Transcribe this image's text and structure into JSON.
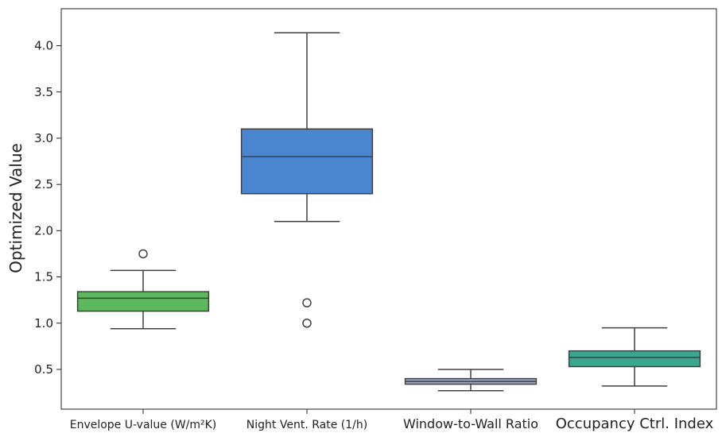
{
  "chart_data": {
    "type": "box",
    "title": "",
    "xlabel": "",
    "ylabel": "Optimized Value",
    "ylim": [
      0.07,
      4.4
    ],
    "yticks": [
      0.5,
      1.0,
      1.5,
      2.0,
      2.5,
      3.0,
      3.5,
      4.0
    ],
    "ytick_labels": [
      "0.5",
      "1.0",
      "1.5",
      "2.0",
      "2.5",
      "3.0",
      "3.5",
      "4.0"
    ],
    "grid": false,
    "categories": [
      "Envelope U-value (W/m²K)",
      "Night Vent. Rate (1/h)",
      "Window-to-Wall Ratio",
      "Occupancy Ctrl. Index"
    ],
    "boxes": [
      {
        "category": "Envelope U-value (W/m²K)",
        "whisker_low": 0.94,
        "q1": 1.13,
        "median": 1.27,
        "q3": 1.34,
        "whisker_high": 1.57,
        "outliers": [
          1.75
        ],
        "color": "#5cb85c"
      },
      {
        "category": "Night Vent. Rate (1/h)",
        "whisker_low": 2.1,
        "q1": 2.4,
        "median": 2.8,
        "q3": 3.1,
        "whisker_high": 4.14,
        "outliers": [
          1.22,
          1.0
        ],
        "color": "#4a86cf"
      },
      {
        "category": "Window-to-Wall Ratio",
        "whisker_low": 0.27,
        "q1": 0.34,
        "median": 0.37,
        "q3": 0.4,
        "whisker_high": 0.5,
        "outliers": [],
        "color": "#9aa7cc"
      },
      {
        "category": "Occupancy Ctrl. Index",
        "whisker_low": 0.32,
        "q1": 0.53,
        "median": 0.63,
        "q3": 0.7,
        "whisker_high": 0.95,
        "outliers": [],
        "color": "#3aa891"
      }
    ]
  }
}
